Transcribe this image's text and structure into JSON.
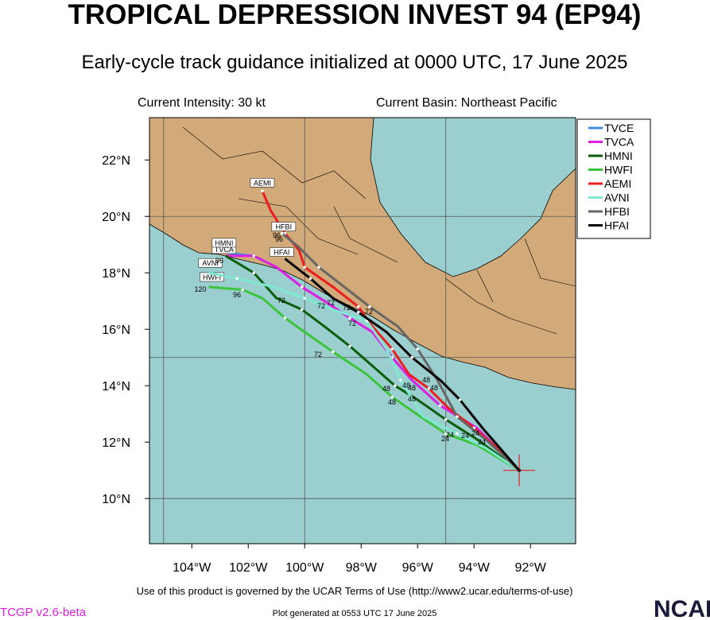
{
  "header": {
    "title": "TROPICAL DEPRESSION INVEST 94 (EP94)",
    "subtitle": "Early-cycle track guidance initialized at 0000 UTC, 17 June 2025",
    "intensity": "Current Intensity: 30 kt",
    "basin": "Current Basin: Northeast Pacific"
  },
  "map": {
    "xlim": [
      -105.5,
      -90.4
    ],
    "ylim": [
      8.4,
      23.5
    ],
    "xticks": [
      {
        "value": -104,
        "label": "104°W"
      },
      {
        "value": -102,
        "label": "102°W"
      },
      {
        "value": -100,
        "label": "100°W"
      },
      {
        "value": -98,
        "label": "98°W"
      },
      {
        "value": -96,
        "label": "96°W"
      },
      {
        "value": -94,
        "label": "94°W"
      },
      {
        "value": -92,
        "label": "92°W"
      }
    ],
    "yticks": [
      {
        "value": 10,
        "label": "10°N"
      },
      {
        "value": 12,
        "label": "12°N"
      },
      {
        "value": 14,
        "label": "14°N"
      },
      {
        "value": 16,
        "label": "16°N"
      },
      {
        "value": 18,
        "label": "18°N"
      },
      {
        "value": 20,
        "label": "20°N"
      },
      {
        "value": 22,
        "label": "22°N"
      }
    ],
    "grid_lon": [
      -105,
      -100,
      -95
    ],
    "grid_lat": [
      10,
      15,
      20
    ],
    "start": {
      "lon": -92.4,
      "lat": 11.0
    },
    "tracks": [
      {
        "name": "TVCE",
        "color": "#3d8fe6",
        "lon": [
          -92.4,
          -93.9,
          -95.2,
          -96.2,
          -96.9,
          -97.6,
          -98.4,
          -99.3,
          -100.1,
          -101.0,
          -101.8,
          -102.7
        ],
        "lat": [
          11.0,
          12.5,
          13.3,
          14.2,
          15.0,
          15.9,
          16.4,
          17.0,
          17.5,
          18.2,
          18.6,
          18.7
        ]
      },
      {
        "name": "TVCA",
        "color": "#e020e0",
        "lon": [
          -92.4,
          -93.9,
          -95.2,
          -96.2,
          -96.9,
          -97.6,
          -98.4,
          -99.3,
          -100.1,
          -101.0,
          -101.8,
          -102.8
        ],
        "lat": [
          11.0,
          12.5,
          13.3,
          14.2,
          15.0,
          15.9,
          16.4,
          17.0,
          17.5,
          18.2,
          18.6,
          18.6
        ]
      },
      {
        "name": "HMNI",
        "color": "#0a5e0a",
        "lon": [
          -92.4,
          -93.9,
          -95.0,
          -96.0,
          -96.8,
          -97.6,
          -98.4,
          -99.3,
          -100.1,
          -101.0,
          -101.8,
          -102.8
        ],
        "lat": [
          11.0,
          12.1,
          12.8,
          13.5,
          14.0,
          14.7,
          15.4,
          16.1,
          16.7,
          17.1,
          18.0,
          18.6
        ]
      },
      {
        "name": "HWFI",
        "color": "#3cc43c",
        "lon": [
          -92.4,
          -93.9,
          -95.0,
          -95.9,
          -96.9,
          -97.8,
          -99.0,
          -100.0,
          -100.7,
          -101.5,
          -102.2,
          -103.4
        ],
        "lat": [
          11.0,
          11.9,
          12.3,
          12.9,
          13.6,
          14.4,
          15.2,
          15.9,
          16.4,
          17.1,
          17.4,
          17.5
        ]
      },
      {
        "name": "AEMI",
        "color": "#ee1c1c",
        "lon": [
          -92.4,
          -93.2,
          -94.0,
          -94.9,
          -95.6,
          -96.3,
          -96.9,
          -97.6,
          -98.1,
          -99.0,
          -100.0,
          -100.2,
          -100.7,
          -101.2,
          -101.5
        ],
        "lat": [
          11.0,
          11.8,
          12.5,
          13.2,
          13.9,
          14.4,
          15.3,
          16.1,
          16.8,
          17.5,
          18.2,
          18.8,
          19.4,
          20.2,
          20.9
        ]
      },
      {
        "name": "AVNI",
        "color": "#7ee8d0",
        "lon": [
          -92.4,
          -93.6,
          -94.6,
          -95.8,
          -96.6,
          -97.1,
          -97.8,
          -99.0,
          -100.0,
          -101.1,
          -102.4,
          -103.4
        ],
        "lat": [
          11.0,
          11.8,
          12.3,
          12.9,
          14.2,
          15.3,
          16.3,
          16.7,
          17.1,
          17.5,
          17.8,
          18.0
        ]
      },
      {
        "name": "HFBI",
        "color": "#666666",
        "lon": [
          -92.4,
          -93.6,
          -94.6,
          -95.3,
          -96.0,
          -96.7,
          -97.7,
          -98.6,
          -99.5,
          -100.2,
          -100.8
        ],
        "lat": [
          11.0,
          12.1,
          12.9,
          14.2,
          15.3,
          16.1,
          16.8,
          17.5,
          18.2,
          18.9,
          19.4
        ]
      },
      {
        "name": "HFAI",
        "color": "#000000",
        "lon": [
          -92.4,
          -93.7,
          -94.5,
          -95.2,
          -96.2,
          -97.1,
          -98.1,
          -99.0,
          -99.8,
          -100.7
        ],
        "lat": [
          11.0,
          12.5,
          13.5,
          14.2,
          15.0,
          15.9,
          16.6,
          17.1,
          17.8,
          18.5
        ]
      }
    ],
    "hour_labels": [
      "120",
      "96",
      "96",
      "96",
      "96",
      "72",
      "72",
      "72",
      "72",
      "72",
      "72",
      "72",
      "48",
      "48",
      "48",
      "48",
      "48",
      "48",
      "48",
      "24",
      "24",
      "24",
      "24",
      "24"
    ]
  },
  "footer": {
    "terms": "Use of this product is governed by the UCAR Terms of Use (http://www2.ucar.edu/terms-of-use)",
    "version": "TCGP v2.6-beta",
    "generated": "Plot generated at 0553 UTC   17 June 2025",
    "logo": "NCAR"
  }
}
